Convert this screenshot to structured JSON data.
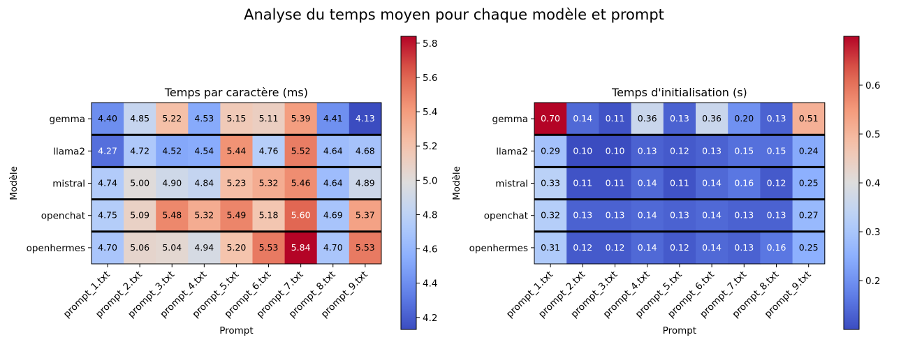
{
  "figure": {
    "suptitle": "Analyse du temps moyen pour chaque modèle et prompt"
  },
  "chart_data": [
    {
      "type": "heatmap",
      "title": "Temps par caractère (ms)",
      "xlabel": "Prompt",
      "ylabel": "Modèle",
      "colormap": "coolwarm",
      "x": [
        "prompt_1.txt",
        "prompt_2.txt",
        "prompt_3.txt",
        "prompt_4.txt",
        "prompt_5.txt",
        "prompt_6.txt",
        "prompt_7.txt",
        "prompt_8.txt",
        "prompt_9.txt"
      ],
      "y": [
        "gemma",
        "llama2",
        "mistral",
        "openchat",
        "openhermes"
      ],
      "values": [
        [
          4.4,
          4.85,
          5.22,
          4.53,
          5.15,
          5.11,
          5.39,
          4.41,
          4.13
        ],
        [
          4.27,
          4.72,
          4.52,
          4.54,
          5.44,
          4.76,
          5.52,
          4.64,
          4.68
        ],
        [
          4.74,
          5.0,
          4.9,
          4.84,
          5.23,
          5.32,
          5.46,
          4.64,
          4.89
        ],
        [
          4.75,
          5.09,
          5.48,
          5.32,
          5.49,
          5.18,
          5.6,
          4.69,
          5.37
        ],
        [
          4.7,
          5.06,
          5.04,
          4.94,
          5.2,
          5.53,
          5.84,
          4.7,
          5.53
        ]
      ],
      "vmin": 4.13,
      "vmax": 5.84,
      "colorbar_ticks": [
        "4.2",
        "4.4",
        "4.6",
        "4.8",
        "5.0",
        "5.2",
        "5.4",
        "5.6",
        "5.8"
      ],
      "grid": false
    },
    {
      "type": "heatmap",
      "title": "Temps d'initialisation (s)",
      "xlabel": "Prompt",
      "ylabel": "Modèle",
      "colormap": "coolwarm",
      "x": [
        "prompt_1.txt",
        "prompt_2.txt",
        "prompt_3.txt",
        "prompt_4.txt",
        "prompt_5.txt",
        "prompt_6.txt",
        "prompt_7.txt",
        "prompt_8.txt",
        "prompt_9.txt"
      ],
      "y": [
        "gemma",
        "llama2",
        "mistral",
        "openchat",
        "openhermes"
      ],
      "values": [
        [
          0.7,
          0.14,
          0.11,
          0.36,
          0.13,
          0.36,
          0.2,
          0.13,
          0.51
        ],
        [
          0.29,
          0.1,
          0.1,
          0.13,
          0.12,
          0.13,
          0.15,
          0.15,
          0.24
        ],
        [
          0.33,
          0.11,
          0.11,
          0.14,
          0.11,
          0.14,
          0.16,
          0.12,
          0.25
        ],
        [
          0.32,
          0.13,
          0.13,
          0.14,
          0.13,
          0.14,
          0.13,
          0.13,
          0.27
        ],
        [
          0.31,
          0.12,
          0.12,
          0.14,
          0.12,
          0.14,
          0.13,
          0.16,
          0.25
        ]
      ],
      "vmin": 0.1,
      "vmax": 0.7,
      "colorbar_ticks": [
        "0.2",
        "0.3",
        "0.4",
        "0.5",
        "0.6"
      ],
      "grid": false
    }
  ]
}
